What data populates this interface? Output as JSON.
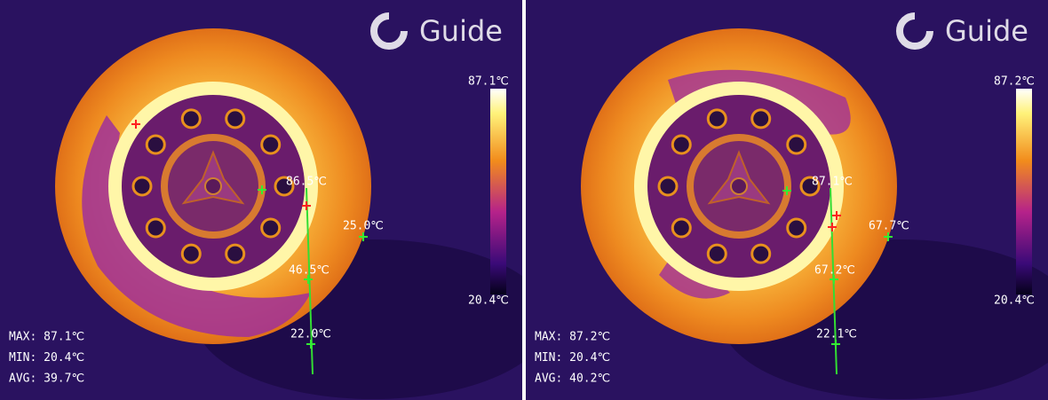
{
  "panels": [
    {
      "logo": "Guide",
      "scale": {
        "max": "87.1℃",
        "min": "20.4℃"
      },
      "points": [
        "86.5℃",
        "25.0℃",
        "46.5℃",
        "22.0℃"
      ],
      "stats": [
        "MAX: 87.1℃",
        "MIN: 20.4℃",
        "AVG: 39.7℃"
      ]
    },
    {
      "logo": "Guide",
      "scale": {
        "max": "87.2℃",
        "min": "20.4℃"
      },
      "points": [
        "87.1℃",
        "67.7℃",
        "67.2℃",
        "22.1℃"
      ],
      "stats": [
        "MAX: 87.2℃",
        "MIN: 20.4℃",
        "AVG: 40.2℃"
      ]
    }
  ]
}
